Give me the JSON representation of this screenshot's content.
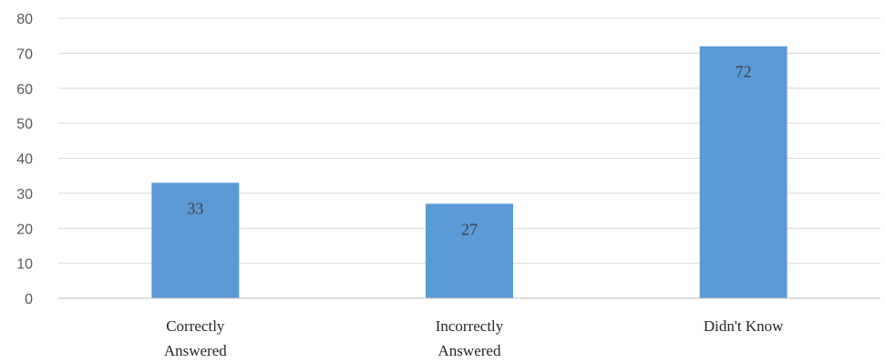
{
  "chart_data": {
    "type": "bar",
    "categories": [
      "Correctly Answered",
      "Incorrectly Answered",
      "Didn't Know"
    ],
    "category_label_lines": [
      [
        "Correctly",
        "Answered"
      ],
      [
        "Incorrectly",
        "Answered"
      ],
      [
        "Didn't Know"
      ]
    ],
    "values": [
      33,
      27,
      72
    ],
    "data_labels": [
      "33",
      "27",
      "72"
    ],
    "yticks": [
      0,
      10,
      20,
      30,
      40,
      50,
      60,
      70,
      80
    ],
    "ylim": [
      0,
      80
    ],
    "grid": true,
    "legend": "none",
    "title": "",
    "xlabel": "",
    "ylabel": "",
    "bar_color": "#5b9bd5"
  }
}
